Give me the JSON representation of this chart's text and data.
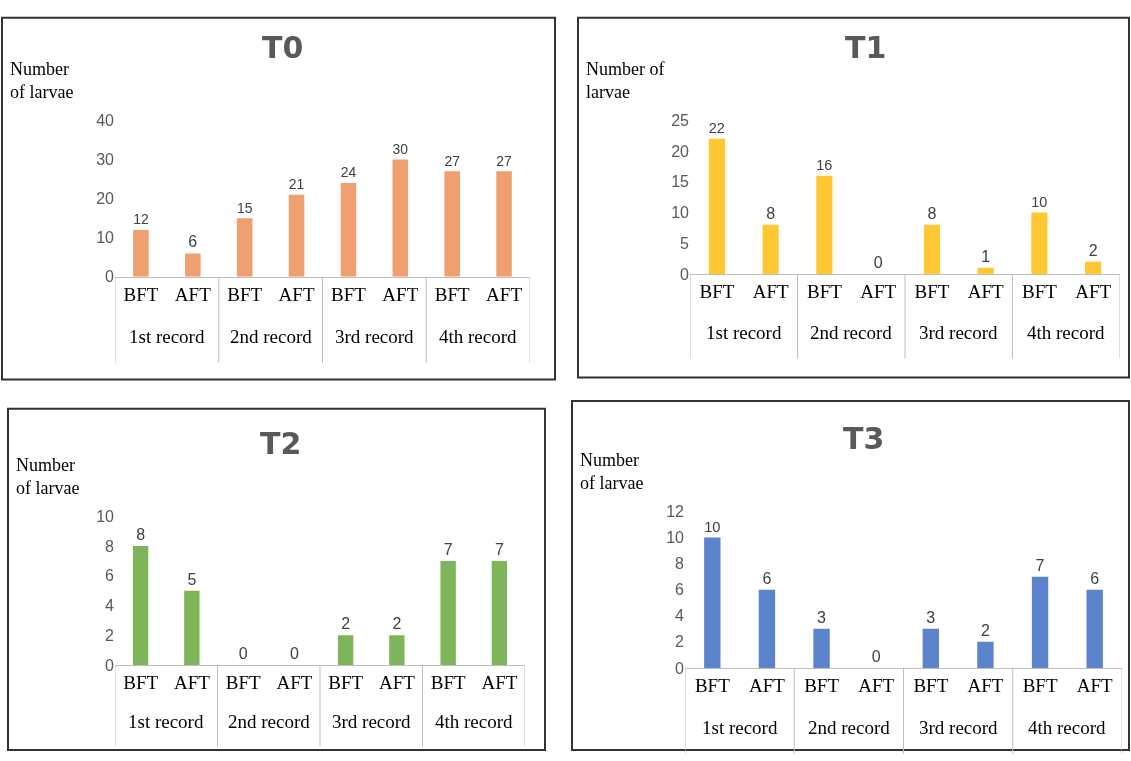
{
  "chart_data": [
    {
      "type": "bar",
      "title": "T0",
      "ylabel": "Number\nof larvae",
      "categories": [
        "BFT",
        "AFT",
        "BFT",
        "AFT",
        "BFT",
        "AFT",
        "BFT",
        "AFT"
      ],
      "values": [
        12,
        6,
        15,
        21,
        24,
        30,
        27,
        27
      ],
      "color": "#f0a070",
      "ylim": [
        0,
        40
      ],
      "yticks": [
        0,
        10,
        20,
        30,
        40
      ],
      "data_labels": true,
      "annotations": [
        "1st record",
        "2nd record",
        "3rd record",
        "4th record"
      ]
    },
    {
      "type": "bar",
      "title": "T1",
      "ylabel": "Number of\nlarvae",
      "categories": [
        "BFT",
        "AFT",
        "BFT",
        "AFT",
        "BFT",
        "AFT",
        "BFT",
        "AFT"
      ],
      "values": [
        22,
        8,
        16,
        0,
        8,
        1,
        10,
        2
      ],
      "color": "#ffc832",
      "ylim": [
        0,
        25
      ],
      "yticks": [
        0,
        5,
        10,
        15,
        20,
        25
      ],
      "data_labels": true,
      "annotations": [
        "1st record",
        "2nd record",
        "3rd record",
        "4th record"
      ]
    },
    {
      "type": "bar",
      "title": "T2",
      "ylabel": "Number\nof larvae",
      "categories": [
        "BFT",
        "AFT",
        "BFT",
        "AFT",
        "BFT",
        "AFT",
        "BFT",
        "AFT"
      ],
      "values": [
        8,
        5,
        0,
        0,
        2,
        2,
        7,
        7
      ],
      "color": "#7fb55a",
      "ylim": [
        0,
        10
      ],
      "yticks": [
        0,
        2,
        4,
        6,
        8,
        10
      ],
      "data_labels": true,
      "annotations": [
        "1st record",
        "2nd record",
        "3rd record",
        "4th record"
      ]
    },
    {
      "type": "bar",
      "title": "T3",
      "ylabel": "Number\nof larvae",
      "categories": [
        "BFT",
        "AFT",
        "BFT",
        "AFT",
        "BFT",
        "AFT",
        "BFT",
        "AFT"
      ],
      "values": [
        10,
        6,
        3,
        0,
        3,
        2,
        7,
        6
      ],
      "color": "#5b84cc",
      "ylim": [
        0,
        12
      ],
      "yticks": [
        0,
        2,
        4,
        6,
        8,
        10,
        12
      ],
      "data_labels": true,
      "annotations": [
        "1st record",
        "2nd record",
        "3rd record",
        "4th record"
      ]
    }
  ]
}
